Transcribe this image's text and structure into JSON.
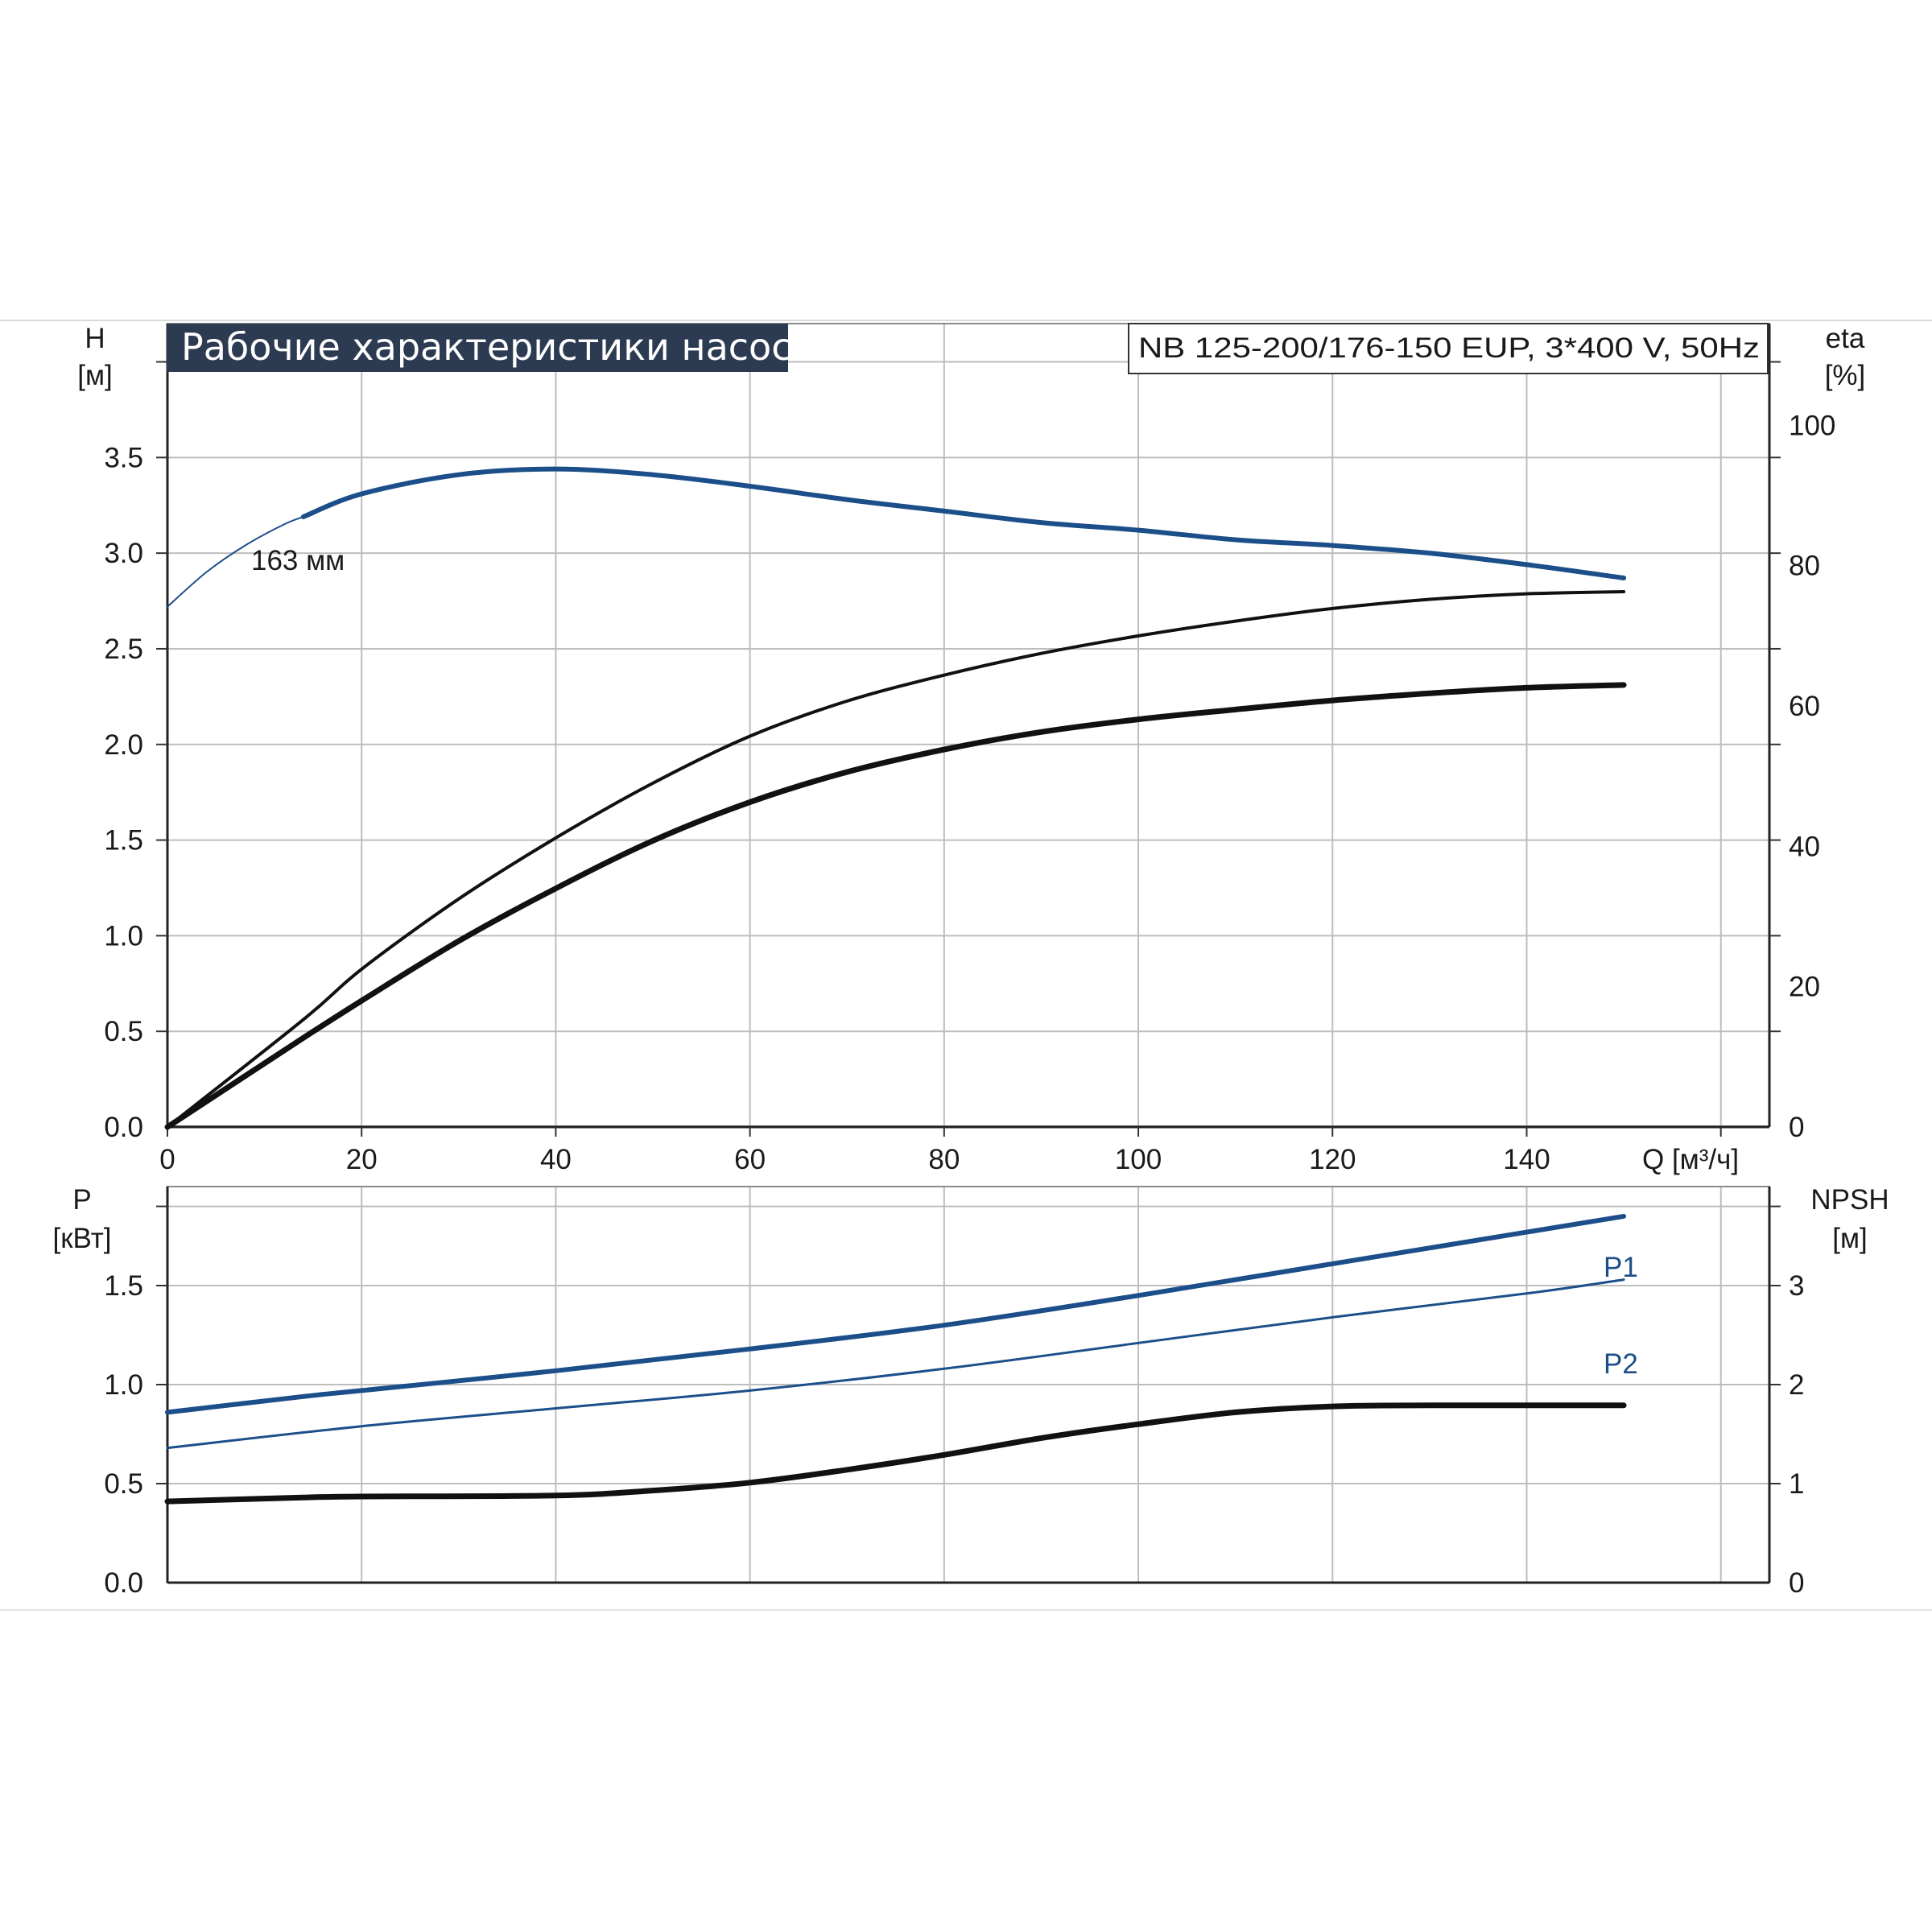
{
  "chart_data": [
    {
      "type": "line",
      "title": "Рабочие характеристики насоса",
      "subtitle": "NB 125-200/176-150 EUP, 3*400 V, 50Hz",
      "xlabel": "Q [м³/ч]",
      "x_ticks": [
        "0",
        "20",
        "40",
        "60",
        "80",
        "100",
        "120",
        "140"
      ],
      "xlim": [
        0,
        165
      ],
      "ylabel_left": [
        "H",
        "[м]"
      ],
      "ylim_left": [
        0,
        4.2
      ],
      "y_ticks_left": [
        "0.0",
        "0.5",
        "1.0",
        "1.5",
        "2.0",
        "2.5",
        "3.0",
        "3.5"
      ],
      "ylabel_right": [
        "eta",
        "[%]"
      ],
      "ylim_right": [
        0,
        114.5
      ],
      "y_ticks_right": [
        "0",
        "20",
        "40",
        "60",
        "80",
        "100"
      ],
      "grid": true,
      "annotations": [
        "163 мм"
      ],
      "series": [
        {
          "name": "163 мм",
          "axis": "left",
          "color": "#1c4f8a",
          "x": [
            14,
            20,
            30,
            40,
            50,
            60,
            70,
            80,
            90,
            100,
            110,
            120,
            130,
            140,
            150
          ],
          "y": [
            3.19,
            3.31,
            3.41,
            3.44,
            3.41,
            3.35,
            3.28,
            3.22,
            3.16,
            3.12,
            3.07,
            3.04,
            3.0,
            2.94,
            2.87
          ]
        },
        {
          "axis": "left",
          "color": "#1c4f8a",
          "x": [
            0,
            4,
            8,
            12,
            14
          ],
          "y": [
            2.72,
            2.9,
            3.04,
            3.15,
            3.19
          ]
        },
        {
          "axis": "right",
          "color": "#111111",
          "x": [
            0,
            14,
            20,
            30,
            40,
            50,
            60,
            70,
            80,
            90,
            100,
            110,
            120,
            130,
            140,
            150
          ],
          "y": [
            0,
            15.3,
            22.5,
            32.5,
            41.2,
            49.0,
            55.7,
            60.7,
            64.4,
            67.5,
            70.0,
            72.1,
            73.9,
            75.2,
            76.0,
            76.3
          ]
        },
        {
          "axis": "right",
          "color": "#111111",
          "x": [
            0,
            14,
            20,
            30,
            40,
            50,
            60,
            70,
            80,
            90,
            100,
            110,
            120,
            130,
            140,
            150
          ],
          "y": [
            0,
            12.7,
            18.0,
            26.5,
            34.0,
            40.8,
            46.3,
            50.6,
            53.8,
            56.3,
            58.1,
            59.5,
            60.8,
            61.8,
            62.6,
            63.0
          ]
        }
      ]
    },
    {
      "type": "line",
      "xlim": [
        0,
        165
      ],
      "ylabel_left": [
        "P",
        "[кВт]"
      ],
      "ylim_left": [
        0,
        2.0
      ],
      "y_ticks_left": [
        "0.0",
        "0.5",
        "1.0",
        "1.5"
      ],
      "ylabel_right": [
        "NPSH",
        "[м]"
      ],
      "ylim_right": [
        0,
        4.0
      ],
      "y_ticks_right": [
        "0",
        "1",
        "2",
        "3"
      ],
      "grid": true,
      "series": [
        {
          "name": "P1",
          "axis": "left",
          "color": "#1c4f8a",
          "x": [
            0,
            14,
            20,
            40,
            60,
            80,
            100,
            120,
            140,
            150
          ],
          "y": [
            0.86,
            0.94,
            0.97,
            1.07,
            1.18,
            1.3,
            1.45,
            1.61,
            1.77,
            1.85
          ]
        },
        {
          "name": "P2",
          "axis": "left",
          "color": "#1c4f8a",
          "x": [
            0,
            20,
            40,
            60,
            80,
            100,
            120,
            140,
            150
          ],
          "y": [
            0.68,
            0.79,
            0.88,
            0.97,
            1.08,
            1.21,
            1.34,
            1.46,
            1.53
          ]
        },
        {
          "axis": "right",
          "color": "#111111",
          "x": [
            0,
            14,
            20,
            40,
            50,
            60,
            70,
            80,
            90,
            100,
            110,
            120,
            130,
            140,
            150
          ],
          "y": [
            0.82,
            0.86,
            0.87,
            0.88,
            0.93,
            1.01,
            1.14,
            1.29,
            1.46,
            1.6,
            1.72,
            1.78,
            1.79,
            1.79,
            1.79
          ]
        }
      ]
    }
  ]
}
